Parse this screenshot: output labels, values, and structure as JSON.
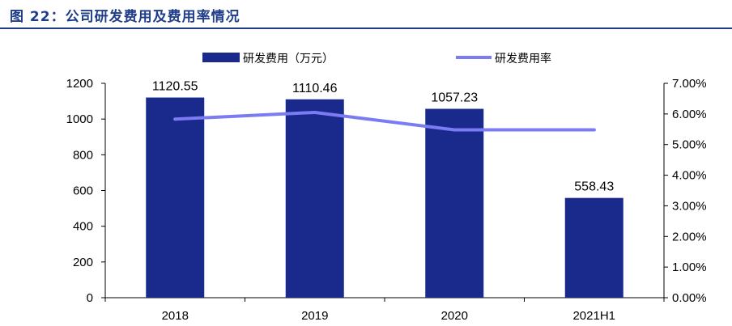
{
  "figure": {
    "title": "图 22：公司研发费用及费用率情况"
  },
  "colors": {
    "bar": "#1a2a8c",
    "line": "#7b7bf2",
    "title": "#1f3c88"
  },
  "chart_data": {
    "type": "bar+line",
    "categories": [
      "2018",
      "2019",
      "2020",
      "2021H1"
    ],
    "series": [
      {
        "name": "研发费用（万元）",
        "type": "bar",
        "axis": "left",
        "values": [
          1120.55,
          1110.46,
          1057.23,
          558.43
        ],
        "labels": [
          "1120.55",
          "1110.46",
          "1057.23",
          "558.43"
        ]
      },
      {
        "name": "研发费用率",
        "type": "line",
        "axis": "right",
        "values": [
          0.0583,
          0.0605,
          0.0548,
          0.0548
        ]
      }
    ],
    "y_left": {
      "min": 0,
      "max": 1200,
      "ticks": [
        "0",
        "200",
        "400",
        "600",
        "800",
        "1000",
        "1200"
      ]
    },
    "y_right": {
      "min": 0,
      "max": 0.07,
      "ticks": [
        "0.00%",
        "1.00%",
        "2.00%",
        "3.00%",
        "4.00%",
        "5.00%",
        "6.00%",
        "7.00%"
      ]
    },
    "legend": "top-center",
    "grid": false
  }
}
